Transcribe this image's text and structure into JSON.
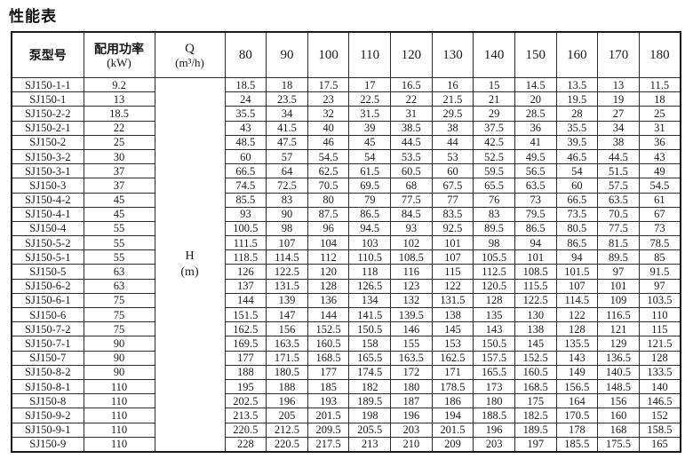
{
  "title": "性能表",
  "table": {
    "col_model": "泵型号",
    "col_power_line1": "配用功率",
    "col_power_line2": "(kW)",
    "col_q_line1": "Q",
    "col_q_line2": "(m³/h)",
    "flow_columns": [
      "80",
      "90",
      "100",
      "110",
      "120",
      "130",
      "140",
      "150",
      "160",
      "170",
      "180"
    ],
    "head_cell_line1": "H",
    "head_cell_line2": "(m)",
    "rows": [
      {
        "model": "SJ150-1-1",
        "power": "9.2",
        "values": [
          "18.5",
          "18",
          "17.5",
          "17",
          "16.5",
          "16",
          "15",
          "14.5",
          "13.5",
          "13",
          "11.5"
        ]
      },
      {
        "model": "SJ150-1",
        "power": "13",
        "values": [
          "24",
          "23.5",
          "23",
          "22.5",
          "22",
          "21.5",
          "21",
          "20",
          "19.5",
          "19",
          "18"
        ]
      },
      {
        "model": "SJ150-2-2",
        "power": "18.5",
        "values": [
          "35.5",
          "34",
          "32",
          "31.5",
          "31",
          "29.5",
          "29",
          "28.5",
          "28",
          "27",
          "25"
        ]
      },
      {
        "model": "SJ150-2-1",
        "power": "22",
        "values": [
          "43",
          "41.5",
          "40",
          "39",
          "38.5",
          "38",
          "37.5",
          "36",
          "35.5",
          "34",
          "31"
        ]
      },
      {
        "model": "SJ150-2",
        "power": "25",
        "values": [
          "48.5",
          "47.5",
          "46",
          "45",
          "44.5",
          "44",
          "42.5",
          "41",
          "39.5",
          "38",
          "36"
        ]
      },
      {
        "model": "SJ150-3-2",
        "power": "30",
        "values": [
          "60",
          "57",
          "54.5",
          "54",
          "53.5",
          "53",
          "52.5",
          "49.5",
          "46.5",
          "44.5",
          "43"
        ]
      },
      {
        "model": "SJ150-3-1",
        "power": "37",
        "values": [
          "66.5",
          "64",
          "62.5",
          "61.5",
          "60.5",
          "60",
          "59.5",
          "56.5",
          "54",
          "51.5",
          "49"
        ]
      },
      {
        "model": "SJ150-3",
        "power": "37",
        "values": [
          "74.5",
          "72.5",
          "70.5",
          "69.5",
          "68",
          "67.5",
          "65.5",
          "63.5",
          "60",
          "57.5",
          "54.5"
        ]
      },
      {
        "model": "SJ150-4-2",
        "power": "45",
        "values": [
          "85.5",
          "83",
          "80",
          "79",
          "77.5",
          "77",
          "76",
          "73",
          "66.5",
          "63.5",
          "61"
        ]
      },
      {
        "model": "SJ150-4-1",
        "power": "45",
        "values": [
          "93",
          "90",
          "87.5",
          "86.5",
          "84.5",
          "83.5",
          "83",
          "79.5",
          "73.5",
          "70.5",
          "67"
        ]
      },
      {
        "model": "SJ150-4",
        "power": "55",
        "values": [
          "100.5",
          "98",
          "96",
          "94.5",
          "93",
          "92.5",
          "89.5",
          "86.5",
          "80.5",
          "77.5",
          "73"
        ]
      },
      {
        "model": "SJ150-5-2",
        "power": "55",
        "values": [
          "111.5",
          "107",
          "104",
          "103",
          "102",
          "101",
          "98",
          "94",
          "86.5",
          "81.5",
          "78.5"
        ]
      },
      {
        "model": "SJ150-5-1",
        "power": "55",
        "values": [
          "118.5",
          "114.5",
          "112",
          "110.5",
          "108.5",
          "107",
          "105.5",
          "101",
          "94",
          "89.5",
          "85"
        ]
      },
      {
        "model": "SJ150-5",
        "power": "63",
        "values": [
          "126",
          "122.5",
          "120",
          "118",
          "116",
          "115",
          "112.5",
          "108.5",
          "101.5",
          "97",
          "91.5"
        ]
      },
      {
        "model": "SJ150-6-2",
        "power": "63",
        "values": [
          "137",
          "131.5",
          "128",
          "126.5",
          "123",
          "122",
          "120.5",
          "115.5",
          "107",
          "101",
          "97"
        ]
      },
      {
        "model": "SJ150-6-1",
        "power": "75",
        "values": [
          "144",
          "139",
          "136",
          "134",
          "132",
          "131.5",
          "128",
          "122.5",
          "114.5",
          "109",
          "103.5"
        ]
      },
      {
        "model": "SJ150-6",
        "power": "75",
        "values": [
          "151.5",
          "147",
          "144",
          "141.5",
          "139.5",
          "138",
          "135",
          "130",
          "122",
          "116.5",
          "110"
        ]
      },
      {
        "model": "SJ150-7-2",
        "power": "75",
        "values": [
          "162.5",
          "156",
          "152.5",
          "150.5",
          "146",
          "145",
          "143",
          "138",
          "128",
          "121",
          "115"
        ]
      },
      {
        "model": "SJ150-7-1",
        "power": "90",
        "values": [
          "169.5",
          "163.5",
          "160.5",
          "158",
          "155",
          "153",
          "150.5",
          "145",
          "135.5",
          "129",
          "121.5"
        ]
      },
      {
        "model": "SJ150-7",
        "power": "90",
        "values": [
          "177",
          "171.5",
          "168.5",
          "165.5",
          "163.5",
          "162.5",
          "157.5",
          "152.5",
          "143",
          "136.5",
          "128"
        ]
      },
      {
        "model": "SJ150-8-2",
        "power": "90",
        "values": [
          "188",
          "180.5",
          "177",
          "174.5",
          "172",
          "171",
          "165.5",
          "160.5",
          "149",
          "140.5",
          "133.5"
        ]
      },
      {
        "model": "SJ150-8-1",
        "power": "110",
        "values": [
          "195",
          "188",
          "185",
          "182",
          "180",
          "178.5",
          "173",
          "168.5",
          "156.5",
          "148.5",
          "140"
        ]
      },
      {
        "model": "SJ150-8",
        "power": "110",
        "values": [
          "202.5",
          "196",
          "193",
          "189.5",
          "187",
          "186",
          "180",
          "175",
          "164",
          "156",
          "146.5"
        ]
      },
      {
        "model": "SJ150-9-2",
        "power": "110",
        "values": [
          "213.5",
          "205",
          "201.5",
          "198",
          "196",
          "194",
          "188.5",
          "182.5",
          "170.5",
          "160",
          "152"
        ]
      },
      {
        "model": "SJ150-9-1",
        "power": "110",
        "values": [
          "220.5",
          "212.5",
          "209.5",
          "205.5",
          "203",
          "201.5",
          "196",
          "189.5",
          "178",
          "168",
          "158.5"
        ]
      },
      {
        "model": "SJ150-9",
        "power": "110",
        "values": [
          "228",
          "220.5",
          "217.5",
          "213",
          "210",
          "209",
          "203",
          "197",
          "185.5",
          "175.5",
          "165"
        ]
      }
    ]
  }
}
